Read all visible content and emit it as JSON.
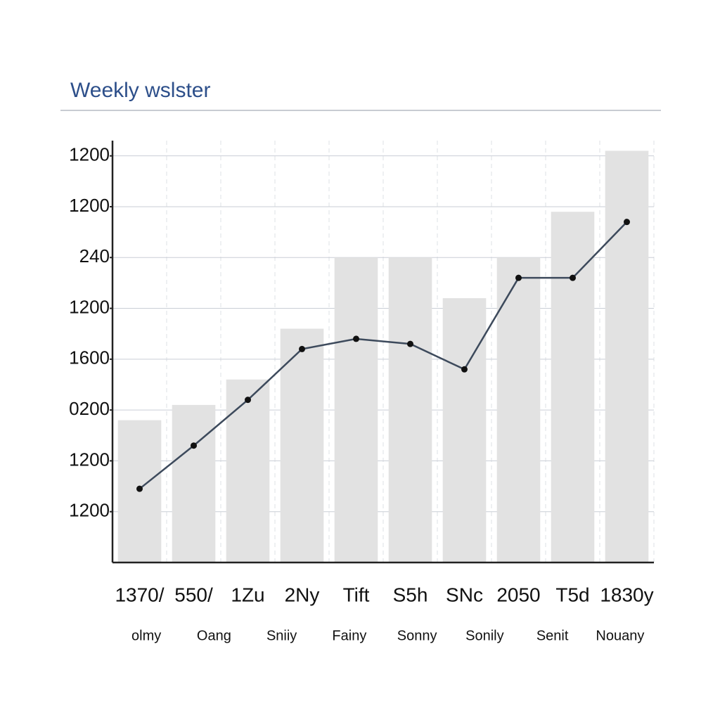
{
  "chart_data": {
    "type": "bar_line",
    "title": "Weekly wslster",
    "categories": [
      "1370/",
      "550/",
      "1Zu",
      "2Ny",
      "Tift",
      "S5h",
      "SNc",
      "2050",
      "T5d",
      "1830y"
    ],
    "period_labels": [
      "olmy",
      "Oang",
      "Sniiy",
      "Fainy",
      "Sonny",
      "Sonily",
      "Senit",
      "Nouany"
    ],
    "series": [
      {
        "name": "bars",
        "kind": "bar",
        "color": "#e2e2e2",
        "values": [
          2.8,
          3.1,
          3.6,
          4.6,
          6.0,
          6.0,
          5.2,
          6.0,
          6.9,
          8.1
        ]
      },
      {
        "name": "line",
        "kind": "line",
        "color": "#3d4a5c",
        "values": [
          1.45,
          2.3,
          3.2,
          4.2,
          4.4,
          4.3,
          3.8,
          5.6,
          5.6,
          6.7
        ]
      }
    ],
    "ylim": [
      0,
      8.3
    ],
    "yticks": [
      {
        "value": 1,
        "label": "1200"
      },
      {
        "value": 2,
        "label": "1200"
      },
      {
        "value": 3,
        "label": "0200"
      },
      {
        "value": 4,
        "label": "1600"
      },
      {
        "value": 5,
        "label": "1200"
      },
      {
        "value": 6,
        "label": "240"
      },
      {
        "value": 7,
        "label": "1200"
      },
      {
        "value": 8,
        "label": "1200"
      }
    ],
    "grid": true
  }
}
